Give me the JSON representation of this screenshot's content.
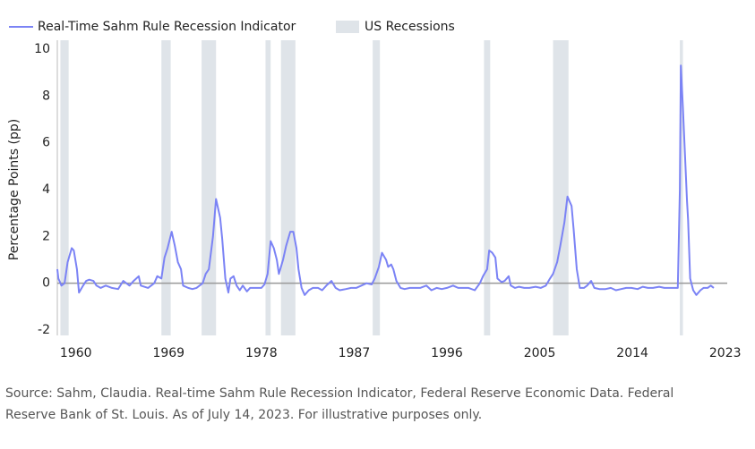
{
  "chart_data": {
    "type": "line",
    "y_label": "Percentage Points (pp)",
    "source": "Source: Sahm, Claudia. Real-time Sahm Rule Recession Indicator, Federal Reserve Economic Data. Federal Reserve Bank of St. Louis. As of July 14, 2023. For illustrative purposes only.",
    "xlim": [
      1958.2,
      2023.2
    ],
    "xticks": [
      1960,
      1969,
      1978,
      1987,
      1996,
      2005,
      2014,
      2023
    ],
    "ylim": [
      -2,
      10
    ],
    "yticks": [
      -2,
      0,
      2,
      4,
      6,
      8,
      10
    ],
    "zero_line": true,
    "shaded_regions": {
      "name": "US Recessions",
      "color": "#dfe4e9",
      "ranges": [
        [
          1958.5,
          1959.3
        ],
        [
          1968.3,
          1969.2
        ],
        [
          1972.2,
          1973.6
        ],
        [
          1978.4,
          1978.9
        ],
        [
          1979.9,
          1981.3
        ],
        [
          1988.8,
          1989.5
        ],
        [
          1999.6,
          2000.2
        ],
        [
          2006.3,
          2007.8
        ],
        [
          2018.6,
          2018.9
        ]
      ]
    },
    "x": [
      1958.2,
      1958.3,
      1958.6,
      1958.9,
      1959.2,
      1959.6,
      1959.8,
      1960.1,
      1960.3,
      1960.7,
      1961.0,
      1961.3,
      1961.7,
      1962.0,
      1962.4,
      1962.9,
      1963.5,
      1964.1,
      1964.6,
      1965.2,
      1965.6,
      1966.1,
      1966.3,
      1967.0,
      1967.6,
      1967.9,
      1968.3,
      1968.6,
      1968.9,
      1969.3,
      1969.6,
      1969.9,
      1970.2,
      1970.4,
      1970.9,
      1971.3,
      1971.7,
      1972.3,
      1972.6,
      1972.9,
      1973.3,
      1973.6,
      1974.0,
      1974.2,
      1974.5,
      1974.8,
      1975.0,
      1975.3,
      1975.6,
      1975.9,
      1976.2,
      1976.6,
      1976.9,
      1977.5,
      1978.0,
      1978.3,
      1978.6,
      1978.9,
      1979.2,
      1979.5,
      1979.7,
      1980.1,
      1980.4,
      1980.8,
      1981.1,
      1981.4,
      1981.6,
      1981.9,
      1982.2,
      1982.6,
      1983.0,
      1983.5,
      1983.9,
      1984.3,
      1984.8,
      1985.2,
      1985.6,
      1986.2,
      1986.7,
      1987.2,
      1987.7,
      1988.2,
      1988.7,
      1989.0,
      1989.4,
      1989.7,
      1990.1,
      1990.3,
      1990.6,
      1990.8,
      1991.1,
      1991.5,
      1991.9,
      1992.4,
      1992.9,
      1993.4,
      1994.0,
      1994.5,
      1995.0,
      1995.5,
      1996.0,
      1996.6,
      1997.1,
      1997.6,
      1998.1,
      1998.7,
      1999.2,
      1999.5,
      1999.9,
      2000.1,
      2000.4,
      2000.7,
      2000.9,
      2001.3,
      2001.6,
      2002.0,
      2002.2,
      2002.6,
      2003.0,
      2003.5,
      2004.0,
      2004.6,
      2005.1,
      2005.6,
      2006.0,
      2006.3,
      2006.7,
      2007.0,
      2007.4,
      2007.7,
      2008.1,
      2008.3,
      2008.6,
      2008.9,
      2009.3,
      2009.6,
      2010.0,
      2010.3,
      2010.8,
      2011.4,
      2011.9,
      2012.4,
      2012.9,
      2013.4,
      2013.9,
      2014.5,
      2015.0,
      2015.5,
      2016.0,
      2016.6,
      2017.1,
      2017.6,
      2018.1,
      2018.4,
      2018.6,
      2018.7,
      2018.9,
      2019.1,
      2019.3,
      2019.4,
      2019.6,
      2019.9,
      2020.2,
      2020.6,
      2020.9,
      2021.3,
      2021.6,
      2021.9
    ],
    "series": [
      {
        "name": "Real-Time Sahm Rule Recession Indicator",
        "color": "#7b83f5",
        "values": [
          0.6,
          0.2,
          -0.1,
          0,
          0.9,
          1.5,
          1.4,
          0.6,
          -0.4,
          -0.1,
          0.1,
          0.15,
          0.1,
          -0.1,
          -0.2,
          -0.1,
          -0.2,
          -0.25,
          0.1,
          -0.1,
          0.1,
          0.3,
          -0.1,
          -0.2,
          0,
          0.3,
          0.2,
          1.1,
          1.5,
          2.2,
          1.6,
          0.9,
          0.6,
          -0.1,
          -0.2,
          -0.25,
          -0.2,
          0,
          0.4,
          0.6,
          2.0,
          3.6,
          2.8,
          1.9,
          0.2,
          -0.4,
          0.2,
          0.3,
          -0.1,
          -0.3,
          -0.1,
          -0.35,
          -0.2,
          -0.2,
          -0.2,
          -0.05,
          0.4,
          1.8,
          1.5,
          1.0,
          0.4,
          1.0,
          1.6,
          2.2,
          2.2,
          1.5,
          0.6,
          -0.2,
          -0.5,
          -0.3,
          -0.2,
          -0.2,
          -0.3,
          -0.1,
          0.1,
          -0.2,
          -0.3,
          -0.25,
          -0.2,
          -0.2,
          -0.1,
          0,
          -0.05,
          0.2,
          0.7,
          1.3,
          1.0,
          0.7,
          0.8,
          0.6,
          0.1,
          -0.2,
          -0.25,
          -0.2,
          -0.2,
          -0.2,
          -0.1,
          -0.3,
          -0.2,
          -0.25,
          -0.2,
          -0.1,
          -0.2,
          -0.2,
          -0.2,
          -0.3,
          0,
          0.3,
          0.6,
          1.4,
          1.3,
          1.1,
          0.2,
          0.05,
          0.1,
          0.3,
          -0.1,
          -0.2,
          -0.15,
          -0.2,
          -0.2,
          -0.15,
          -0.2,
          -0.1,
          0.2,
          0.4,
          0.9,
          1.6,
          2.6,
          3.7,
          3.3,
          2.3,
          0.6,
          -0.2,
          -0.2,
          -0.1,
          0.1,
          -0.2,
          -0.25,
          -0.25,
          -0.2,
          -0.3,
          -0.25,
          -0.2,
          -0.2,
          -0.25,
          -0.15,
          -0.2,
          -0.2,
          -0.15,
          -0.2,
          -0.2,
          -0.2,
          -0.2,
          4.0,
          9.3,
          7.5,
          5.5,
          3.5,
          2.7,
          0.2,
          -0.3,
          -0.5,
          -0.3,
          -0.2,
          -0.2,
          -0.1,
          -0.2
        ]
      }
    ]
  }
}
